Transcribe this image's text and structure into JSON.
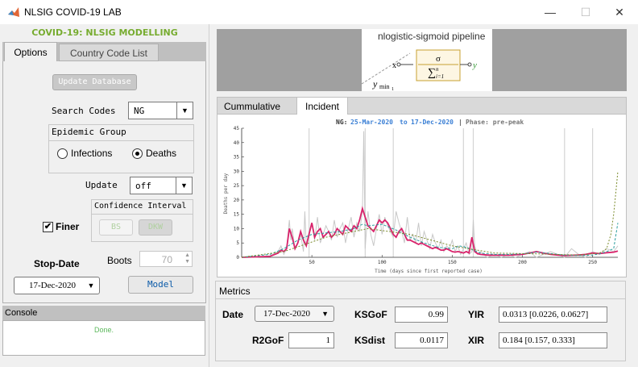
{
  "window": {
    "title": "NLSIG COVID-19 LAB",
    "minimize_glyph": "—",
    "maximize_glyph": "☐",
    "close_glyph": "✕"
  },
  "left": {
    "heading": "COVID-19: NLSIG MODELLING",
    "tabs": [
      "Options",
      "Country Code List"
    ],
    "update_db_label": "Update Database",
    "search_label": "Search Codes",
    "search_value": "NG",
    "epidemic_group_title": "Epidemic Group",
    "radio_infections": "Infections",
    "radio_deaths": "Deaths",
    "selected_group": "Deaths",
    "update_label": "Update",
    "update_value": "off",
    "ci_title": "Confidence Interval",
    "ci_bs": "BS",
    "ci_dkw": "DKW",
    "finer_label": "Finer",
    "finer_checked": true,
    "boots_label": "Boots",
    "boots_value": "70",
    "stopdate_label": "Stop-Date",
    "stopdate_value": "17-Dec-2020",
    "model_label": "Model",
    "console_title": "Console",
    "console_text": "Done."
  },
  "banner": {
    "title": "nlogistic-sigmoid pipeline",
    "sigma": "σ",
    "sum_upper": "n",
    "sum_lower": "i=1",
    "input_x": "x",
    "output_y": "y",
    "ymin": "y",
    "ymin_sub": "min",
    "ymin_sub2": "1"
  },
  "plot_tabs": [
    "Cummulative",
    "Incident"
  ],
  "active_plot_tab": "Incident",
  "chart_data": {
    "type": "line",
    "header": {
      "country": "NG:",
      "start": "25-Mar-2020",
      "to": "to",
      "end": "17-Dec-2020",
      "sep": "|",
      "phase": "Phase: pre-peak"
    },
    "xlabel": "Time (days since first reported case)",
    "ylabel": "Deaths per day",
    "xlim": [
      0,
      268
    ],
    "ylim": [
      0,
      45
    ],
    "xticks": [
      50,
      100,
      150,
      200,
      250
    ],
    "yticks": [
      0,
      5,
      10,
      15,
      20,
      25,
      30,
      35,
      40,
      45
    ],
    "vertical_markers": [
      48,
      88,
      108,
      158,
      165,
      230,
      250
    ],
    "series": [
      {
        "color": "#c8c8c8",
        "values_x": [
          0,
          10,
          20,
          26,
          28,
          30,
          32,
          34,
          35,
          36,
          38,
          40,
          42,
          44,
          45,
          46,
          48,
          50,
          52,
          54,
          56,
          58,
          60,
          62,
          64,
          66,
          68,
          70,
          72,
          74,
          76,
          78,
          80,
          82,
          84,
          86,
          87,
          88,
          89,
          90,
          92,
          94,
          96,
          98,
          100,
          102,
          104,
          106,
          108,
          110,
          112,
          114,
          116,
          118,
          120,
          122,
          124,
          126,
          128,
          130,
          132,
          134,
          136,
          138,
          140,
          142,
          144,
          146,
          148,
          150,
          152,
          154,
          156,
          158,
          160,
          162,
          164,
          165,
          166,
          168,
          170,
          175,
          180,
          185,
          190,
          195,
          200,
          205,
          210,
          215,
          220,
          225,
          230,
          235,
          240,
          245,
          250,
          255,
          260,
          265,
          268
        ],
        "values_y": [
          0,
          0,
          0.5,
          2,
          4,
          1,
          3,
          13,
          6,
          10,
          3,
          5,
          8,
          2,
          16,
          4,
          9,
          12,
          6,
          14,
          5,
          8,
          11,
          9,
          6,
          13,
          7,
          10,
          12,
          5,
          10,
          14,
          7,
          12,
          9,
          16,
          44,
          3,
          10,
          16,
          8,
          4,
          10,
          15,
          8,
          14,
          11,
          9,
          7,
          16,
          12,
          9,
          5,
          14,
          6,
          8,
          5,
          12,
          4,
          9,
          6,
          3,
          8,
          5,
          3,
          6,
          2,
          4,
          3,
          6,
          2,
          4,
          1,
          3,
          5,
          1,
          2,
          13,
          4,
          1,
          2,
          0,
          1,
          0,
          1,
          0,
          1,
          2,
          0,
          1,
          2,
          1,
          0,
          3,
          1,
          0,
          2,
          1,
          3,
          2,
          4
        ]
      },
      {
        "color": "#d9226b",
        "values_x": [
          0,
          20,
          26,
          28,
          30,
          32,
          34,
          36,
          38,
          40,
          42,
          44,
          46,
          48,
          50,
          52,
          54,
          56,
          58,
          60,
          62,
          64,
          66,
          68,
          70,
          72,
          74,
          76,
          78,
          80,
          82,
          84,
          86,
          88,
          90,
          92,
          94,
          96,
          98,
          100,
          102,
          104,
          106,
          108,
          110,
          112,
          114,
          116,
          118,
          120,
          122,
          124,
          126,
          128,
          130,
          132,
          134,
          136,
          138,
          140,
          142,
          144,
          146,
          148,
          150,
          152,
          154,
          156,
          158,
          160,
          162,
          164,
          166,
          168,
          170,
          175,
          180,
          185,
          190,
          195,
          200,
          205,
          210,
          215,
          220,
          225,
          230,
          235,
          240,
          245,
          250,
          255,
          260,
          265,
          268
        ],
        "values_y": [
          0,
          0.3,
          1.5,
          2.5,
          2,
          3,
          10,
          7,
          3,
          5,
          9,
          6,
          4,
          8,
          12,
          7,
          9,
          10,
          7,
          8,
          9,
          7,
          8,
          10,
          9,
          8,
          11,
          10,
          9,
          11,
          10,
          13,
          17,
          14,
          11,
          10,
          9,
          11,
          13,
          12,
          13,
          12,
          10,
          8,
          7,
          9,
          10,
          8,
          6,
          6,
          5.5,
          5,
          4.5,
          5,
          4.5,
          4,
          3.5,
          3,
          3.5,
          3,
          2.5,
          2.5,
          3,
          2.5,
          2,
          1.8,
          2,
          1.8,
          1.5,
          2,
          1.5,
          7,
          2,
          1.3,
          1,
          0.8,
          0.7,
          0.8,
          0.7,
          0.9,
          1,
          1.5,
          2,
          1.5,
          1,
          0.8,
          0.6,
          0.7,
          0.8,
          1,
          1.5,
          1.3,
          1.6,
          1.8,
          2.2
        ]
      },
      {
        "color": "#2a9d9d",
        "values_x": [
          0,
          20,
          30,
          40,
          50,
          60,
          70,
          80,
          86,
          90,
          100,
          110,
          120,
          130,
          140,
          150,
          155,
          160,
          165,
          170,
          180,
          190,
          200,
          210,
          220,
          230,
          240,
          250,
          255,
          260,
          265,
          268
        ],
        "values_y": [
          0,
          1,
          3,
          6,
          8,
          8.5,
          9,
          10,
          11.5,
          11,
          11.5,
          9.5,
          7,
          5,
          3.5,
          3,
          4,
          3.5,
          2.5,
          1.5,
          1,
          1,
          1.2,
          1.8,
          1.3,
          0.8,
          0.6,
          0.8,
          1.2,
          2,
          3,
          12
        ]
      },
      {
        "color": "#7a8a2a",
        "values_x": [
          0,
          30,
          60,
          90,
          120,
          150,
          180,
          210,
          240,
          255,
          260,
          263,
          265,
          267,
          268
        ],
        "values_y": [
          0,
          2,
          7,
          10,
          8,
          4,
          1.5,
          1.2,
          0.8,
          1.5,
          3,
          8,
          15,
          25,
          30
        ]
      }
    ]
  },
  "metrics": {
    "title": "Metrics",
    "date_label": "Date",
    "date_value": "17-Dec-2020",
    "ksgof_label": "KSGoF",
    "ksgof_value": "0.99",
    "yir_label": "YIR",
    "yir_value": "0.0313 [0.0226, 0.0627]",
    "r2gof_label": "R2GoF",
    "r2gof_value": "1",
    "ksdist_label": "KSdist",
    "ksdist_value": "0.0117",
    "xir_label": "XIR",
    "xir_value": "0.184 [0.157, 0.333]"
  }
}
